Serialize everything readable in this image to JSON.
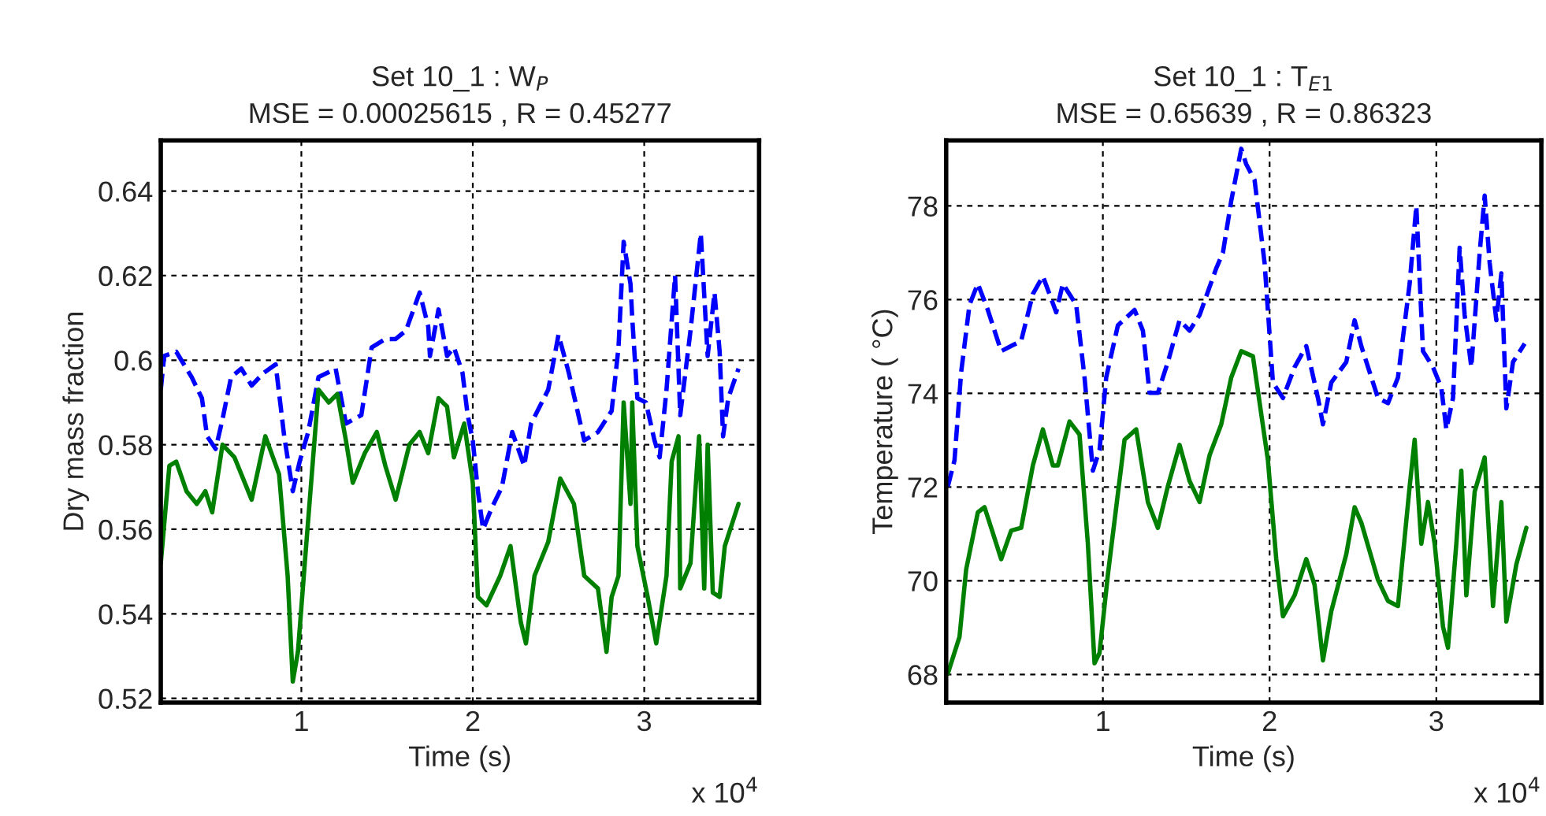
{
  "chart_data": [
    {
      "type": "line",
      "title": "Set 10_1 : W$_{P}$",
      "subtitle": "MSE = 0.00025615 , R = 0.45277",
      "xlabel": "Time (s)",
      "ylabel": "Dry mass fraction",
      "annotations": [
        "x 10$^{4}$"
      ],
      "xlim": [
        0.18,
        3.67
      ],
      "ylim": [
        0.519,
        0.652
      ],
      "xticks": [
        1,
        2,
        3
      ],
      "yticks": [
        0.52,
        0.54,
        0.56,
        0.58,
        0.6,
        0.62,
        0.64
      ],
      "grid": true,
      "series": [
        {
          "color": "#0000ff",
          "line_style": "dashed",
          "x": [
            0.18,
            0.2,
            0.27,
            0.36,
            0.42,
            0.45,
            0.5,
            0.54,
            0.59,
            0.65,
            0.71,
            0.78,
            0.85,
            0.9,
            0.95,
            0.99,
            1.04,
            1.1,
            1.2,
            1.26,
            1.35,
            1.41,
            1.49,
            1.55,
            1.61,
            1.69,
            1.74,
            1.75,
            1.8,
            1.85,
            1.89,
            1.94,
            1.97,
            2.0,
            2.03,
            2.06,
            2.11,
            2.17,
            2.23,
            2.3,
            2.34,
            2.44,
            2.5,
            2.56,
            2.65,
            2.73,
            2.81,
            2.85,
            2.88,
            2.92,
            2.93,
            2.96,
            3.01,
            3.06,
            3.09,
            3.13,
            3.18,
            3.21,
            3.27,
            3.33,
            3.37,
            3.41,
            3.44,
            3.46,
            3.49,
            3.55
          ],
          "values": [
            0.593,
            0.601,
            0.602,
            0.596,
            0.591,
            0.582,
            0.579,
            0.586,
            0.596,
            0.598,
            0.594,
            0.597,
            0.599,
            0.582,
            0.569,
            0.576,
            0.583,
            0.596,
            0.598,
            0.585,
            0.587,
            0.603,
            0.605,
            0.605,
            0.607,
            0.616,
            0.608,
            0.601,
            0.612,
            0.601,
            0.603,
            0.597,
            0.587,
            0.581,
            0.569,
            0.56,
            0.565,
            0.57,
            0.583,
            0.575,
            0.585,
            0.593,
            0.606,
            0.597,
            0.581,
            0.583,
            0.588,
            0.603,
            0.628,
            0.618,
            0.61,
            0.591,
            0.59,
            0.581,
            0.577,
            0.593,
            0.62,
            0.587,
            0.607,
            0.63,
            0.601,
            0.616,
            0.602,
            0.582,
            0.591,
            0.598
          ]
        },
        {
          "color": "#008000",
          "line_style": "solid",
          "x": [
            0.18,
            0.23,
            0.27,
            0.33,
            0.39,
            0.44,
            0.48,
            0.54,
            0.61,
            0.71,
            0.79,
            0.87,
            0.92,
            0.95,
            0.98,
            1.02,
            1.1,
            1.16,
            1.21,
            1.26,
            1.3,
            1.37,
            1.44,
            1.49,
            1.55,
            1.63,
            1.69,
            1.74,
            1.8,
            1.85,
            1.89,
            1.95,
            2.0,
            2.03,
            2.08,
            2.16,
            2.22,
            2.28,
            2.31,
            2.36,
            2.44,
            2.51,
            2.59,
            2.65,
            2.73,
            2.78,
            2.81,
            2.85,
            2.88,
            2.92,
            2.93,
            2.96,
            3.02,
            3.07,
            3.13,
            3.16,
            3.2,
            3.21,
            3.27,
            3.32,
            3.35,
            3.37,
            3.4,
            3.44,
            3.47,
            3.55
          ],
          "values": [
            0.552,
            0.575,
            0.576,
            0.569,
            0.566,
            0.569,
            0.564,
            0.58,
            0.577,
            0.567,
            0.582,
            0.573,
            0.549,
            0.524,
            0.531,
            0.552,
            0.593,
            0.59,
            0.592,
            0.581,
            0.571,
            0.578,
            0.583,
            0.575,
            0.567,
            0.58,
            0.583,
            0.578,
            0.591,
            0.589,
            0.577,
            0.585,
            0.571,
            0.544,
            0.542,
            0.549,
            0.556,
            0.538,
            0.533,
            0.549,
            0.557,
            0.572,
            0.566,
            0.549,
            0.546,
            0.531,
            0.544,
            0.549,
            0.59,
            0.566,
            0.59,
            0.556,
            0.544,
            0.533,
            0.549,
            0.576,
            0.582,
            0.546,
            0.552,
            0.582,
            0.546,
            0.58,
            0.545,
            0.544,
            0.556,
            0.566
          ]
        }
      ]
    },
    {
      "type": "line",
      "title": "Set 10_1 : T$_{E1}$",
      "subtitle": "MSE = 0.65639 , R = 0.86323",
      "xlabel": "Time (s)",
      "ylabel": "Temperature ( °C)",
      "annotations": [
        "x 10$^{4}$"
      ],
      "xlim": [
        0.06,
        3.63
      ],
      "ylim": [
        67.4,
        79.4
      ],
      "xticks": [
        1,
        2,
        3
      ],
      "yticks": [
        68,
        70,
        72,
        74,
        76,
        78
      ],
      "grid": true,
      "series": [
        {
          "color": "#0000ff",
          "line_style": "dashed",
          "x": [
            0.07,
            0.11,
            0.15,
            0.2,
            0.25,
            0.31,
            0.39,
            0.45,
            0.51,
            0.58,
            0.64,
            0.72,
            0.76,
            0.84,
            0.89,
            0.94,
            0.98,
            1.02,
            1.09,
            1.19,
            1.24,
            1.28,
            1.33,
            1.39,
            1.46,
            1.52,
            1.58,
            1.68,
            1.72,
            1.77,
            1.83,
            1.86,
            1.91,
            1.97,
            2.02,
            2.08,
            2.15,
            2.22,
            2.29,
            2.32,
            2.37,
            2.46,
            2.51,
            2.55,
            2.65,
            2.71,
            2.77,
            2.84,
            2.88,
            2.92,
            2.98,
            3.03,
            3.06,
            3.1,
            3.14,
            3.17,
            3.21,
            3.26,
            3.29,
            3.32,
            3.36,
            3.39,
            3.42,
            3.46,
            3.53
          ],
          "values": [
            72.01,
            72.57,
            74.45,
            75.89,
            76.34,
            75.78,
            74.9,
            75.01,
            75.12,
            76.12,
            76.5,
            75.73,
            76.34,
            75.89,
            74.34,
            72.35,
            72.79,
            74.34,
            75.45,
            75.78,
            75.34,
            74.01,
            74.01,
            74.67,
            75.56,
            75.34,
            75.67,
            76.67,
            77.0,
            78.11,
            79.22,
            78.89,
            78.55,
            76.78,
            74.23,
            73.9,
            74.56,
            75.01,
            73.9,
            73.34,
            74.23,
            74.67,
            75.56,
            75.01,
            73.9,
            73.79,
            74.34,
            76.34,
            78.0,
            74.9,
            74.56,
            74.12,
            73.23,
            73.9,
            77.11,
            75.67,
            74.56,
            77.0,
            78.22,
            76.78,
            75.56,
            76.56,
            73.68,
            74.67,
            75.06
          ]
        },
        {
          "color": "#008000",
          "line_style": "solid",
          "x": [
            0.07,
            0.14,
            0.18,
            0.25,
            0.29,
            0.34,
            0.39,
            0.45,
            0.51,
            0.58,
            0.64,
            0.7,
            0.73,
            0.8,
            0.86,
            0.91,
            0.95,
            0.98,
            1.03,
            1.13,
            1.2,
            1.27,
            1.33,
            1.39,
            1.46,
            1.52,
            1.58,
            1.64,
            1.71,
            1.77,
            1.83,
            1.9,
            1.99,
            2.04,
            2.08,
            2.15,
            2.22,
            2.27,
            2.32,
            2.37,
            2.46,
            2.51,
            2.55,
            2.65,
            2.71,
            2.77,
            2.84,
            2.87,
            2.91,
            2.95,
            2.99,
            3.04,
            3.07,
            3.12,
            3.15,
            3.18,
            3.23,
            3.29,
            3.34,
            3.39,
            3.42,
            3.48,
            3.54
          ],
          "values": [
            68.02,
            68.8,
            70.24,
            71.46,
            71.57,
            71.02,
            70.46,
            71.07,
            71.13,
            72.46,
            73.23,
            72.46,
            72.46,
            73.4,
            73.12,
            70.79,
            68.24,
            68.46,
            70.13,
            73.01,
            73.23,
            71.68,
            71.13,
            72.02,
            72.9,
            72.13,
            71.68,
            72.68,
            73.34,
            74.34,
            74.9,
            74.79,
            72.57,
            70.46,
            69.24,
            69.69,
            70.46,
            69.91,
            68.3,
            69.35,
            70.57,
            71.57,
            71.24,
            70.02,
            69.57,
            69.46,
            72.01,
            73.01,
            70.79,
            71.68,
            70.79,
            69.02,
            68.57,
            70.79,
            72.35,
            69.69,
            71.9,
            72.63,
            69.46,
            71.68,
            69.13,
            70.35,
            71.13
          ]
        }
      ]
    }
  ]
}
